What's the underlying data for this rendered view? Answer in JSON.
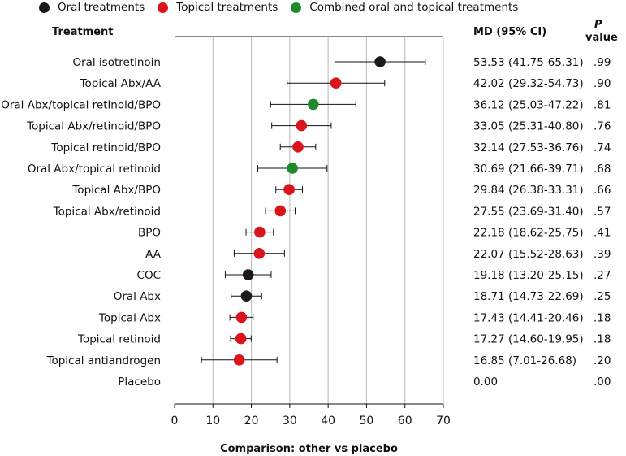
{
  "legend": [
    {
      "label": "Oral treatments",
      "color": "#1a1a1a"
    },
    {
      "label": "Topical treatments",
      "color": "#d9141a"
    },
    {
      "label": "Combined oral and topical treatments",
      "color": "#1e8a2c"
    }
  ],
  "headers": {
    "treatment": "Treatment",
    "md": "MD (95% CI)",
    "p_top": "P",
    "p_bottom": "value"
  },
  "chart_data": {
    "type": "forest",
    "xlabel": "Comparison: other vs placebo",
    "xlim": [
      0,
      70
    ],
    "xticks": [
      0,
      10,
      20,
      30,
      40,
      50,
      60,
      70
    ],
    "grid": true,
    "rows": [
      {
        "label": "Oral isotretinoin",
        "group": "oral",
        "md": 53.53,
        "lo": 41.75,
        "hi": 65.31,
        "md_text": "53.53 (41.75-65.31)",
        "p": ".99"
      },
      {
        "label": "Topical Abx/AA",
        "group": "topical",
        "md": 42.02,
        "lo": 29.32,
        "hi": 54.73,
        "md_text": "42.02 (29.32-54.73)",
        "p": ".90"
      },
      {
        "label": "Oral Abx/topical retinoid/BPO",
        "group": "combined",
        "md": 36.12,
        "lo": 25.03,
        "hi": 47.22,
        "md_text": "36.12 (25.03-47.22)",
        "p": ".81"
      },
      {
        "label": "Topical Abx/retinoid/BPO",
        "group": "topical",
        "md": 33.05,
        "lo": 25.31,
        "hi": 40.8,
        "md_text": "33.05 (25.31-40.80)",
        "p": ".76"
      },
      {
        "label": "Topical retinoid/BPO",
        "group": "topical",
        "md": 32.14,
        "lo": 27.53,
        "hi": 36.76,
        "md_text": "32.14 (27.53-36.76)",
        "p": ".74"
      },
      {
        "label": "Oral Abx/topical retinoid",
        "group": "combined",
        "md": 30.69,
        "lo": 21.66,
        "hi": 39.71,
        "md_text": "30.69 (21.66-39.71)",
        "p": ".68"
      },
      {
        "label": "Topical Abx/BPO",
        "group": "topical",
        "md": 29.84,
        "lo": 26.38,
        "hi": 33.31,
        "md_text": "29.84 (26.38-33.31)",
        "p": ".66"
      },
      {
        "label": "Topical Abx/retinoid",
        "group": "topical",
        "md": 27.55,
        "lo": 23.69,
        "hi": 31.4,
        "md_text": "27.55 (23.69-31.40)",
        "p": ".57"
      },
      {
        "label": "BPO",
        "group": "topical",
        "md": 22.18,
        "lo": 18.62,
        "hi": 25.75,
        "md_text": "22.18 (18.62-25.75)",
        "p": ".41"
      },
      {
        "label": "AA",
        "group": "topical",
        "md": 22.07,
        "lo": 15.52,
        "hi": 28.63,
        "md_text": "22.07 (15.52-28.63)",
        "p": ".39"
      },
      {
        "label": "COC",
        "group": "oral",
        "md": 19.18,
        "lo": 13.2,
        "hi": 25.15,
        "md_text": "19.18 (13.20-25.15)",
        "p": ".27"
      },
      {
        "label": "Oral Abx",
        "group": "oral",
        "md": 18.71,
        "lo": 14.73,
        "hi": 22.69,
        "md_text": "18.71 (14.73-22.69)",
        "p": ".25"
      },
      {
        "label": "Topical Abx",
        "group": "topical",
        "md": 17.43,
        "lo": 14.41,
        "hi": 20.46,
        "md_text": "17.43 (14.41-20.46)",
        "p": ".18"
      },
      {
        "label": "Topical retinoid",
        "group": "topical",
        "md": 17.27,
        "lo": 14.6,
        "hi": 19.95,
        "md_text": "17.27 (14.60-19.95)",
        "p": ".18"
      },
      {
        "label": "Topical antiandrogen",
        "group": "topical",
        "md": 16.85,
        "lo": 7.01,
        "hi": 26.68,
        "md_text": "16.85 (7.01-26.68)",
        "p": ".20"
      },
      {
        "label": "Placebo",
        "group": "none",
        "md": null,
        "lo": null,
        "hi": null,
        "md_text": "0.00",
        "p": ".00"
      }
    ],
    "group_colors": {
      "oral": "#1a1a1a",
      "topical": "#d9141a",
      "combined": "#1e8a2c"
    }
  }
}
